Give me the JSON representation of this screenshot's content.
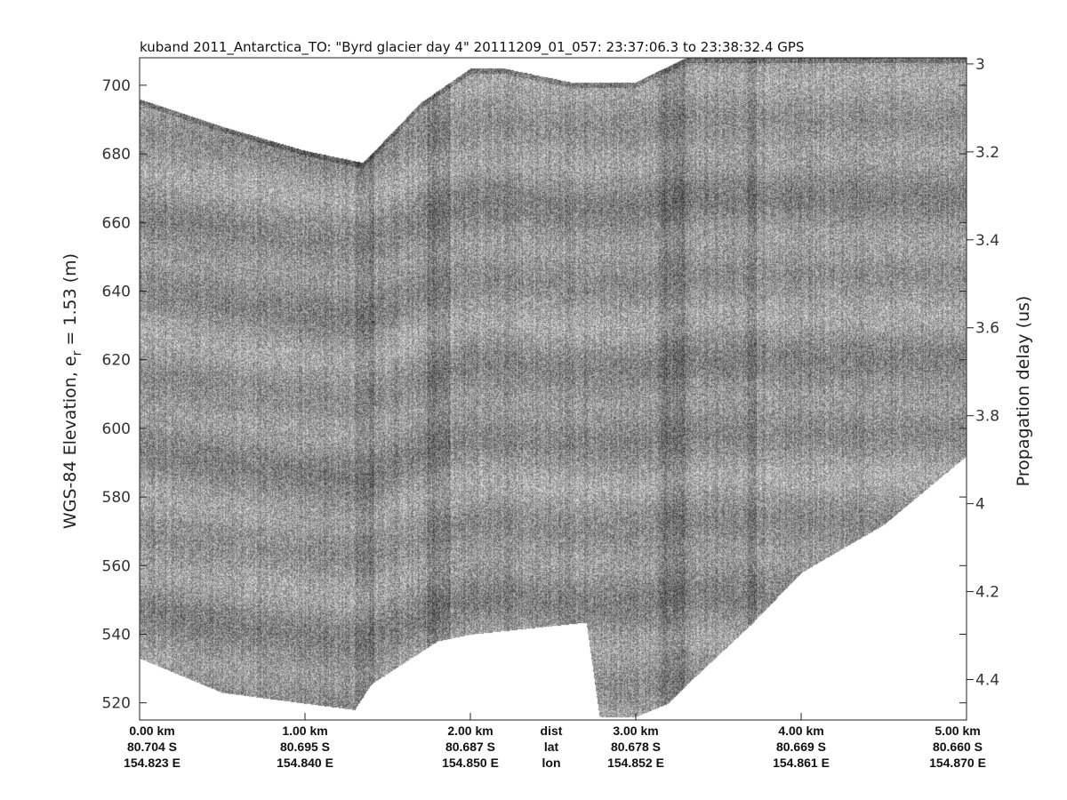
{
  "chart_data": {
    "type": "heatmap",
    "title": "kuband 2011_Antarctica_TO: \"Byrd glacier day 4\"  20111209_01_057: 23:37:06.3 to 23:38:32.4 GPS",
    "ylabel_left_prefix": "WGS-84 Elevation, e",
    "ylabel_left_sub": "r",
    "ylabel_left_suffix": " = 1.53 (m)",
    "ylabel_right": "Propagation delay (us)",
    "ylim_left": [
      515,
      708
    ],
    "ylim_right": [
      2.986,
      4.492
    ],
    "xlim_km": [
      0,
      5
    ],
    "yticks_left": [
      520,
      540,
      560,
      580,
      600,
      620,
      640,
      660,
      680,
      700
    ],
    "yticks_right": [
      "3",
      "3.2",
      "3.4",
      "3.6",
      "3.8",
      "4",
      "4.2",
      "4.4"
    ],
    "xticks": [
      {
        "km": 0,
        "dist": "0.00 km",
        "lat": "80.704 S",
        "lon": "154.823 E"
      },
      {
        "km": 1,
        "dist": "1.00 km",
        "lat": "80.695 S",
        "lon": "154.840 E"
      },
      {
        "km": 2,
        "dist": "2.00 km",
        "lat": "80.687 S",
        "lon": "154.850 E"
      },
      {
        "km": 3,
        "dist": "3.00 km",
        "lat": "80.678 S",
        "lon": "154.852 E"
      },
      {
        "km": 4,
        "dist": "4.00 km",
        "lat": "80.669 S",
        "lon": "154.861 E"
      },
      {
        "km": 5,
        "dist": "5.00 km",
        "lat": "80.660 S",
        "lon": "154.870 E"
      }
    ],
    "row_labels": {
      "dist": "dist",
      "lat": "lat",
      "lon": "lon"
    },
    "colormap": "gray",
    "surface_elevation_m": {
      "km": [
        0,
        0.5,
        1.0,
        1.35,
        1.7,
        2.0,
        2.2,
        2.6,
        3.0,
        3.3,
        5.0
      ],
      "m": [
        696,
        688,
        681,
        677.5,
        695,
        705,
        705,
        701,
        701,
        708,
        708
      ]
    },
    "bottom_elevation_m": {
      "km": [
        0,
        0.5,
        1.3,
        1.4,
        1.8,
        2.0,
        2.7,
        2.78,
        3.0,
        3.2,
        3.3,
        3.7,
        4.0,
        4.5,
        5.0
      ],
      "m": [
        533,
        523,
        518,
        525.5,
        538,
        540,
        543.5,
        516,
        516,
        520,
        525,
        543,
        558,
        572,
        592
      ]
    }
  }
}
